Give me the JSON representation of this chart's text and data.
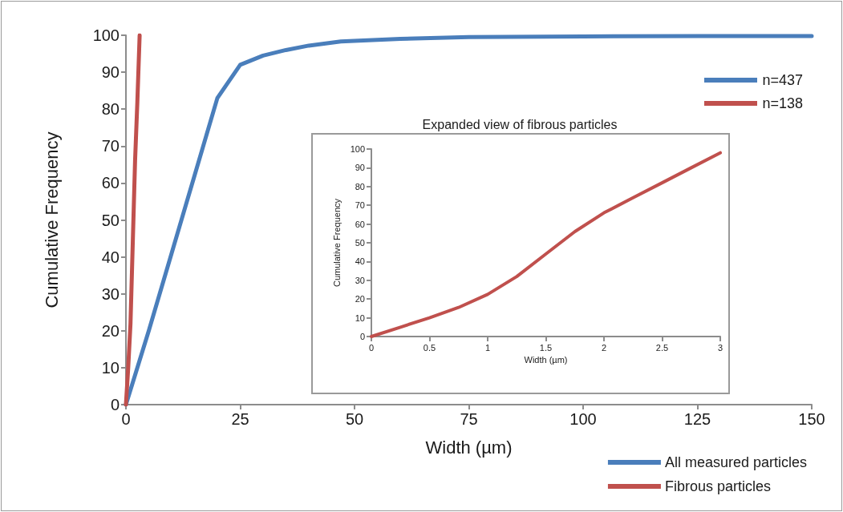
{
  "chart_data": [
    {
      "type": "line",
      "xlabel": "Width (µm)",
      "ylabel": "Cumulative Frequency",
      "xlim": [
        0,
        150
      ],
      "xticks": [
        0,
        25,
        50,
        75,
        100,
        125,
        150
      ],
      "ylim": [
        0,
        100
      ],
      "yticks": [
        0,
        10,
        20,
        30,
        40,
        50,
        60,
        70,
        80,
        90,
        100
      ],
      "grid": false,
      "legend": "bottom right",
      "annotations": [
        "n=437",
        "n=138"
      ],
      "marker": "none",
      "series": [
        {
          "name": "All measured particles",
          "color": "#4a7ebb",
          "x": [
            0,
            5,
            10,
            15,
            20,
            25,
            30,
            35,
            40,
            47,
            60,
            75,
            100,
            125,
            150
          ],
          "values": [
            0,
            20,
            41,
            62,
            83,
            92,
            94.5,
            96,
            97.2,
            98.3,
            99,
            99.5,
            99.7,
            99.8,
            99.8
          ]
        },
        {
          "name": "Fibrous particles",
          "color": "#c0504d",
          "x": [
            0,
            0.5,
            1,
            1.5,
            2,
            2.5,
            3
          ],
          "values": [
            0,
            10,
            22,
            44,
            66,
            82,
            100
          ]
        }
      ]
    },
    {
      "type": "line",
      "title": "Expanded view of fibrous particles",
      "xlabel": "Width (µm)",
      "ylabel": "Cumulative Frequency",
      "xlim": [
        0,
        3
      ],
      "xticks": [
        0,
        0.5,
        1,
        1.5,
        2,
        2.5,
        3
      ],
      "ylim": [
        0,
        100
      ],
      "yticks": [
        0,
        10,
        20,
        30,
        40,
        50,
        60,
        70,
        80,
        90,
        100
      ],
      "grid": false,
      "legend": false,
      "marker": "none",
      "series": [
        {
          "color": "#c0504d",
          "x": [
            0,
            0.25,
            0.5,
            0.75,
            1,
            1.25,
            1.5,
            1.75,
            2,
            2.25,
            2.5,
            2.75,
            3
          ],
          "values": [
            0,
            5,
            10,
            15.5,
            22.5,
            32,
            44,
            56,
            66,
            74,
            82,
            90,
            98
          ]
        }
      ]
    }
  ]
}
